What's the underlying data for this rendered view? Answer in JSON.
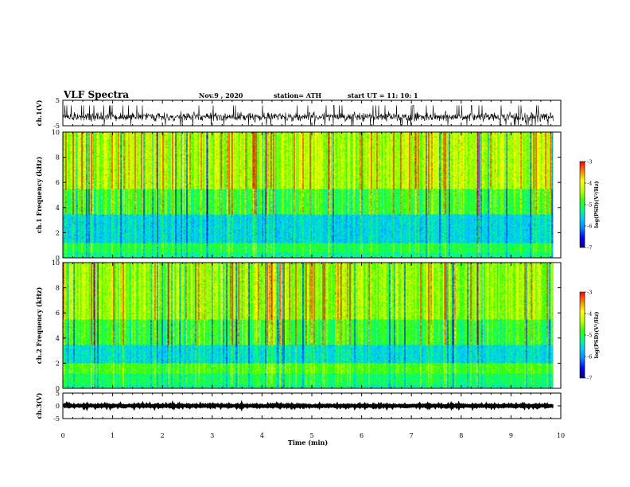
{
  "header": {
    "title": "VLF Spectra",
    "date": "Nov.9 , 2020",
    "station": "station= ATH",
    "start": "start UT = 11: 10: 1"
  },
  "colors": {
    "spectrum": [
      "#000080",
      "#0000ff",
      "#0080ff",
      "#00c8ff",
      "#00ff80",
      "#40ff00",
      "#c0ff00",
      "#ffff00",
      "#ff8000",
      "#ff0000"
    ],
    "trace": "#000000",
    "frame": "#000000"
  },
  "chart_data": [
    {
      "type": "line",
      "name": "ch1-waveform",
      "ylabel": "ch.1(V)",
      "ylim": [
        -5,
        5
      ],
      "yticks": [
        "5",
        "-5"
      ],
      "xlim": [
        0,
        10
      ],
      "trace": {
        "center": -1.5,
        "amplitude": 2.5,
        "end_time": 9.85
      }
    },
    {
      "type": "heatmap",
      "name": "ch1-spectrogram",
      "ylabel": "ch.1 Frequency (kHz)",
      "ylim": [
        0,
        10
      ],
      "yticks": [
        "0",
        "2",
        "4",
        "6",
        "8",
        "10"
      ],
      "xlim": [
        0,
        10
      ],
      "data_end_time": 9.85,
      "colorbar": {
        "title": "log(PSD)(V²/Hz)",
        "range": [
          -7,
          -3
        ],
        "ticks": [
          "-3",
          "-4",
          "-5",
          "-6",
          "-7"
        ]
      }
    },
    {
      "type": "heatmap",
      "name": "ch2-spectrogram",
      "ylabel": "ch.2 Frequency (kHz)",
      "ylim": [
        0,
        10
      ],
      "yticks": [
        "0",
        "2",
        "4",
        "6",
        "8",
        "10"
      ],
      "xlim": [
        0,
        10
      ],
      "data_end_time": 9.85,
      "colorbar": {
        "title": "log(PSD)(V²/Hz)",
        "range": [
          -7,
          -3
        ],
        "ticks": [
          "-3",
          "-4",
          "-5",
          "-6",
          "-7"
        ]
      }
    },
    {
      "type": "line",
      "name": "ch3-waveform",
      "ylabel": "ch.3(V)",
      "ylim": [
        -5,
        5
      ],
      "yticks": [
        "5",
        "0",
        "-5"
      ],
      "xlim": [
        0,
        10
      ],
      "xlabel": "Time (min)",
      "xticks": [
        "0",
        "1",
        "2",
        "3",
        "4",
        "5",
        "6",
        "7",
        "8",
        "9",
        "10"
      ],
      "trace": {
        "center": 0,
        "amplitude": 0.4,
        "end_time": 9.85
      }
    }
  ]
}
